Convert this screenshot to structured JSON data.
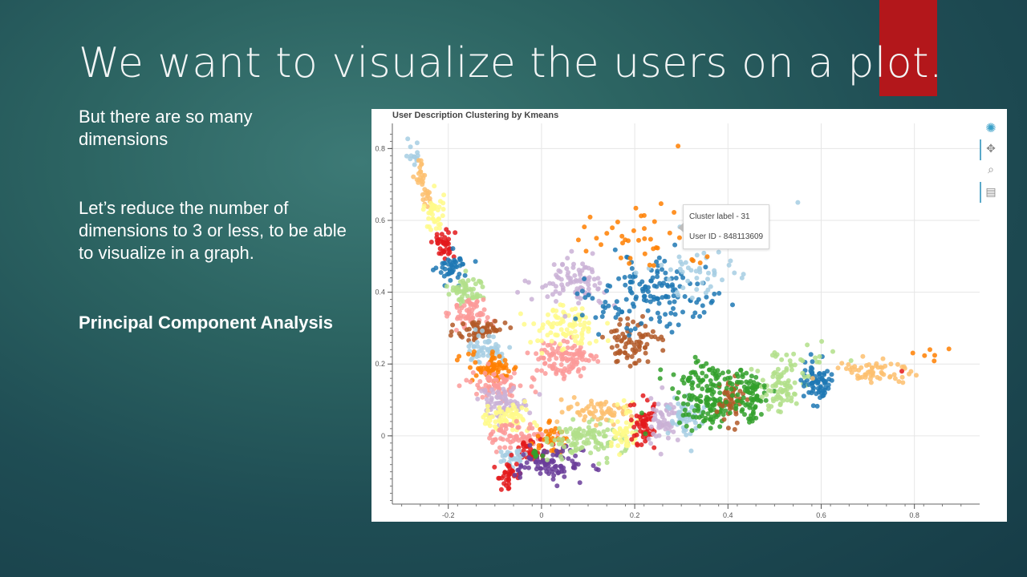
{
  "slide": {
    "title": "We want to visualize the users on a plot.",
    "bullets": [
      "But there are so many dimensions",
      "Let’s reduce the number of dimensions to 3 or less, to be able to visualize in a graph.",
      "Principal Component Analysis"
    ],
    "accent_color": "#b3171b"
  },
  "toolbar": {
    "icons": [
      "bokeh-logo-icon",
      "pan-icon",
      "box-zoom-icon",
      "save-icon"
    ]
  },
  "tooltip": {
    "cluster_label": "Cluster label - 31",
    "user_id": "User ID - 848113609"
  },
  "chart_data": {
    "type": "scatter",
    "title": "User Description Clustering by Kmeans",
    "xlabel": "",
    "ylabel": "",
    "xlim": [
      -0.32,
      0.94
    ],
    "ylim": [
      -0.19,
      0.87
    ],
    "xticks": [
      -0.2,
      0,
      0.2,
      0.4,
      0.6,
      0.8
    ],
    "xtick_labels": [
      "-0.2",
      "0",
      "0.2",
      "0.4",
      "0.6",
      "0.8"
    ],
    "yticks": [
      0,
      0.2,
      0.4,
      0.6,
      0.8
    ],
    "ytick_labels": [
      "0",
      "0.2",
      "0.4",
      "0.6",
      "0.8"
    ],
    "grid": true,
    "legend": "none",
    "clusters": [
      {
        "color": "#a6cee3",
        "cx": -0.275,
        "cy": 0.79,
        "sx": 0.008,
        "sy": 0.018,
        "n": 12
      },
      {
        "color": "#fdbf6f",
        "cx": -0.26,
        "cy": 0.73,
        "sx": 0.007,
        "sy": 0.025,
        "n": 18
      },
      {
        "color": "#fdbf6f",
        "cx": -0.25,
        "cy": 0.67,
        "sx": 0.006,
        "sy": 0.018,
        "n": 14
      },
      {
        "color": "#fffa8a",
        "cx": -0.23,
        "cy": 0.62,
        "sx": 0.01,
        "sy": 0.03,
        "n": 40
      },
      {
        "color": "#e31a1c",
        "cx": -0.21,
        "cy": 0.535,
        "sx": 0.012,
        "sy": 0.02,
        "n": 40
      },
      {
        "color": "#1f78b4",
        "cx": -0.19,
        "cy": 0.47,
        "sx": 0.015,
        "sy": 0.02,
        "n": 45
      },
      {
        "color": "#b2df8a",
        "cx": -0.16,
        "cy": 0.405,
        "sx": 0.02,
        "sy": 0.02,
        "n": 60
      },
      {
        "color": "#fb9a99",
        "cx": -0.15,
        "cy": 0.34,
        "sx": 0.022,
        "sy": 0.02,
        "n": 60
      },
      {
        "color": "#b15928",
        "cx": -0.13,
        "cy": 0.295,
        "sx": 0.025,
        "sy": 0.018,
        "n": 60
      },
      {
        "color": "#a6cee3",
        "cx": -0.115,
        "cy": 0.24,
        "sx": 0.025,
        "sy": 0.02,
        "n": 60
      },
      {
        "color": "#ff7f00",
        "cx": -0.105,
        "cy": 0.19,
        "sx": 0.028,
        "sy": 0.02,
        "n": 70
      },
      {
        "color": "#fb9a99",
        "cx": -0.095,
        "cy": 0.14,
        "sx": 0.028,
        "sy": 0.02,
        "n": 70
      },
      {
        "color": "#cab2d6",
        "cx": -0.085,
        "cy": 0.095,
        "sx": 0.028,
        "sy": 0.02,
        "n": 70
      },
      {
        "color": "#fffa8a",
        "cx": -0.075,
        "cy": 0.05,
        "sx": 0.028,
        "sy": 0.018,
        "n": 70
      },
      {
        "color": "#fb9a99",
        "cx": -0.05,
        "cy": 0.0,
        "sx": 0.03,
        "sy": 0.018,
        "n": 70
      },
      {
        "color": "#e31a1c",
        "cx": -0.02,
        "cy": -0.04,
        "sx": 0.02,
        "sy": 0.015,
        "n": 40
      },
      {
        "color": "#ff7f00",
        "cx": 0.02,
        "cy": -0.01,
        "sx": 0.018,
        "sy": 0.02,
        "n": 40
      },
      {
        "color": "#a6cee3",
        "cx": -0.06,
        "cy": -0.06,
        "sx": 0.018,
        "sy": 0.012,
        "n": 30
      },
      {
        "color": "#e31a1c",
        "cx": -0.07,
        "cy": -0.11,
        "sx": 0.015,
        "sy": 0.02,
        "n": 35
      },
      {
        "color": "#6a3d9a",
        "cx": 0.02,
        "cy": -0.08,
        "sx": 0.035,
        "sy": 0.022,
        "n": 90
      },
      {
        "color": "#33a02c",
        "cx": -0.01,
        "cy": -0.05,
        "sx": 0.008,
        "sy": 0.008,
        "n": 8
      },
      {
        "color": "#b2df8a",
        "cx": 0.1,
        "cy": -0.01,
        "sx": 0.04,
        "sy": 0.025,
        "n": 110
      },
      {
        "color": "#fdbf6f",
        "cx": 0.12,
        "cy": 0.07,
        "sx": 0.035,
        "sy": 0.018,
        "n": 60
      },
      {
        "color": "#fffa8a",
        "cx": 0.18,
        "cy": 0.02,
        "sx": 0.015,
        "sy": 0.03,
        "n": 50
      },
      {
        "color": "#e31a1c",
        "cx": 0.22,
        "cy": 0.03,
        "sx": 0.015,
        "sy": 0.035,
        "n": 60
      },
      {
        "color": "#cab2d6",
        "cx": 0.265,
        "cy": 0.04,
        "sx": 0.018,
        "sy": 0.03,
        "n": 55
      },
      {
        "color": "#a6cee3",
        "cx": 0.31,
        "cy": 0.05,
        "sx": 0.02,
        "sy": 0.03,
        "n": 55
      },
      {
        "color": "#33a02c",
        "cx": 0.36,
        "cy": 0.09,
        "sx": 0.035,
        "sy": 0.03,
        "n": 110
      },
      {
        "color": "#b15928",
        "cx": 0.405,
        "cy": 0.09,
        "sx": 0.012,
        "sy": 0.028,
        "n": 45
      },
      {
        "color": "#33a02c",
        "cx": 0.45,
        "cy": 0.11,
        "sx": 0.02,
        "sy": 0.035,
        "n": 70
      },
      {
        "color": "#b2df8a",
        "cx": 0.51,
        "cy": 0.13,
        "sx": 0.022,
        "sy": 0.035,
        "n": 70
      },
      {
        "color": "#1f78b4",
        "cx": 0.59,
        "cy": 0.15,
        "sx": 0.02,
        "sy": 0.03,
        "n": 70
      },
      {
        "color": "#fdbf6f",
        "cx": 0.71,
        "cy": 0.18,
        "sx": 0.04,
        "sy": 0.02,
        "n": 60
      },
      {
        "color": "#ff7f00",
        "cx": 0.83,
        "cy": 0.21,
        "sx": 0.04,
        "sy": 0.02,
        "n": 5
      },
      {
        "color": "#fb9a99",
        "cx": 0.05,
        "cy": 0.21,
        "sx": 0.035,
        "sy": 0.03,
        "n": 110
      },
      {
        "color": "#fffa8a",
        "cx": 0.05,
        "cy": 0.3,
        "sx": 0.035,
        "sy": 0.03,
        "n": 90
      },
      {
        "color": "#cab2d6",
        "cx": 0.07,
        "cy": 0.43,
        "sx": 0.04,
        "sy": 0.03,
        "n": 90
      },
      {
        "color": "#b15928",
        "cx": 0.19,
        "cy": 0.26,
        "sx": 0.03,
        "sy": 0.035,
        "n": 75
      },
      {
        "color": "#1f78b4",
        "cx": 0.25,
        "cy": 0.39,
        "sx": 0.07,
        "sy": 0.05,
        "n": 150
      },
      {
        "color": "#a6cee3",
        "cx": 0.33,
        "cy": 0.45,
        "sx": 0.05,
        "sy": 0.03,
        "n": 45
      },
      {
        "color": "#ff7f00",
        "cx": 0.2,
        "cy": 0.55,
        "sx": 0.08,
        "sy": 0.04,
        "n": 45
      },
      {
        "color": "#33a02c",
        "cx": 0.36,
        "cy": 0.17,
        "sx": 0.05,
        "sy": 0.02,
        "n": 60
      },
      {
        "color": "#b2df8a",
        "cx": 0.56,
        "cy": 0.22,
        "sx": 0.04,
        "sy": 0.03,
        "n": 25
      }
    ],
    "highlight_points": [
      {
        "x": -0.287,
        "y": 0.827,
        "color": "#a6cee3"
      },
      {
        "x": 0.293,
        "y": 0.807,
        "color": "#ff7f00"
      },
      {
        "x": 0.297,
        "y": 0.582,
        "color": "#a6cee3"
      },
      {
        "x": 0.55,
        "y": 0.65,
        "color": "#a6cee3"
      },
      {
        "x": 0.874,
        "y": 0.242,
        "color": "#ff7f00"
      },
      {
        "x": 0.773,
        "y": 0.18,
        "color": "#e31a1c"
      }
    ]
  }
}
